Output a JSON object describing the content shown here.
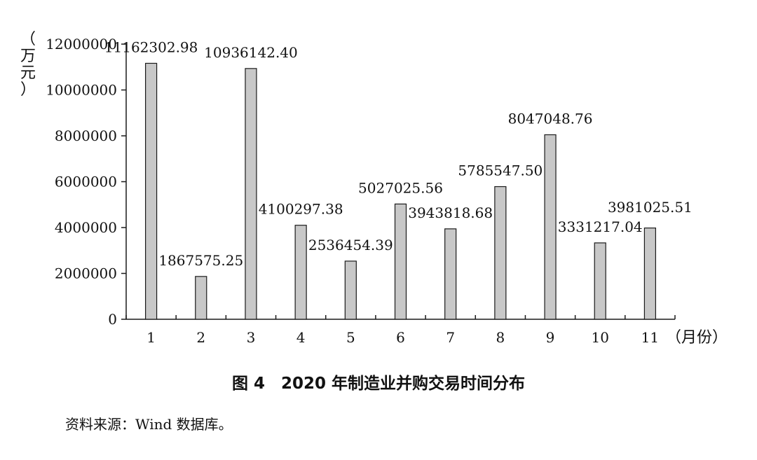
{
  "chart_data": {
    "type": "bar",
    "categories": [
      "1",
      "2",
      "3",
      "4",
      "5",
      "6",
      "7",
      "8",
      "9",
      "10",
      "11"
    ],
    "values": [
      11162302.98,
      1867575.25,
      10936142.4,
      4100297.38,
      2536454.39,
      5027025.56,
      3943818.68,
      5785547.5,
      8047048.76,
      3331217.04,
      3981025.51
    ],
    "value_labels": [
      "11162302.98",
      "1867575.25",
      "10936142.40",
      "4100297.38",
      "2536454.39",
      "5027025.56",
      "3943818.68",
      "5785547.50",
      "8047048.76",
      "3331217.04",
      "3981025.51"
    ],
    "yticks": [
      "0",
      "2000000",
      "4000000",
      "6000000",
      "8000000",
      "10000000",
      "12000000"
    ],
    "ylim": [
      0,
      12000000
    ],
    "ylabel": "（万元）",
    "xlabel": "（月份）",
    "bar_color": "#c8c8c8",
    "bar_edge_color": "#1a1a1a",
    "grid": false,
    "legend": false
  },
  "caption": "图 4　2020 年制造业并购交易时间分布",
  "source": "资料来源：Wind 数据库。"
}
